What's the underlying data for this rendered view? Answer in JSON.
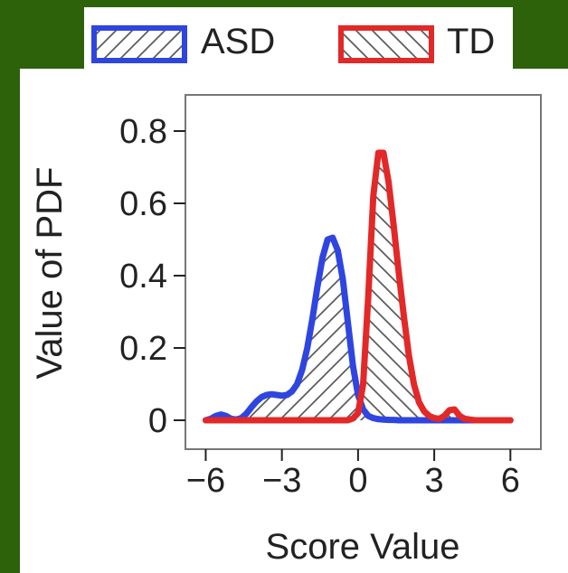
{
  "chart_data": {
    "type": "area",
    "title": "",
    "xlabel": "Score Value",
    "ylabel": "Value of PDF",
    "xlim": [
      -6.8,
      7.2
    ],
    "ylim": [
      -0.08,
      0.9
    ],
    "xticks": [
      -6,
      -3,
      0,
      3,
      6
    ],
    "xtick_labels": [
      "−6",
      "−3",
      "0",
      "3",
      "6"
    ],
    "yticks": [
      0,
      0.2,
      0.4,
      0.6,
      0.8
    ],
    "ytick_labels": [
      "0",
      "0.2",
      "0.4",
      "0.6",
      "0.8"
    ],
    "grid": false,
    "legend": {
      "position": "top",
      "entries": [
        "ASD",
        "TD"
      ]
    },
    "series": [
      {
        "name": "ASD",
        "color": "#2f45e0",
        "hatch": "backslash",
        "x": [
          -6,
          -5.8,
          -5.6,
          -5.4,
          -5.2,
          -5.0,
          -4.8,
          -4.6,
          -4.4,
          -4.2,
          -4.0,
          -3.8,
          -3.6,
          -3.4,
          -3.2,
          -3.0,
          -2.8,
          -2.6,
          -2.4,
          -2.2,
          -2.0,
          -1.8,
          -1.6,
          -1.4,
          -1.2,
          -1.0,
          -0.8,
          -0.6,
          -0.4,
          -0.2,
          0,
          0.2,
          0.4,
          0.6,
          0.8,
          1.0,
          1.2,
          1.4,
          1.6,
          1.8,
          2.0,
          2.2,
          2.4,
          2.6,
          2.8,
          3.0,
          3.2,
          3.4,
          3.6,
          3.8,
          4.0,
          4.2,
          4.4,
          4.6,
          4.8,
          5.0,
          5.2,
          5.4,
          5.6,
          5.8,
          6.0
        ],
        "y": [
          0.0,
          0.004,
          0.012,
          0.016,
          0.012,
          0.004,
          0.002,
          0.006,
          0.018,
          0.036,
          0.052,
          0.064,
          0.07,
          0.072,
          0.07,
          0.068,
          0.07,
          0.08,
          0.1,
          0.14,
          0.2,
          0.28,
          0.37,
          0.45,
          0.5,
          0.505,
          0.47,
          0.39,
          0.27,
          0.15,
          0.07,
          0.03,
          0.012,
          0.006,
          0.003,
          0.002,
          0.001,
          0.001,
          0.0,
          0.0,
          0.0,
          0.0,
          0.0,
          0.0,
          0.0,
          0.0,
          0.0,
          0.0,
          0.0,
          0.0,
          0.0,
          0.0,
          0.0,
          0.0,
          0.0,
          0.0,
          0.0,
          0.0,
          0.0,
          0.0,
          0.0
        ]
      },
      {
        "name": "TD",
        "color": "#e32828",
        "hatch": "slash",
        "x": [
          -6,
          -5.8,
          -5.6,
          -5.4,
          -5.2,
          -5.0,
          -4.8,
          -4.6,
          -4.4,
          -4.2,
          -4.0,
          -3.8,
          -3.6,
          -3.4,
          -3.2,
          -3.0,
          -2.8,
          -2.6,
          -2.4,
          -2.2,
          -2.0,
          -1.8,
          -1.6,
          -1.4,
          -1.2,
          -1.0,
          -0.8,
          -0.6,
          -0.4,
          -0.2,
          0,
          0.2,
          0.4,
          0.6,
          0.8,
          1.0,
          1.2,
          1.4,
          1.6,
          1.8,
          2.0,
          2.2,
          2.4,
          2.6,
          2.8,
          3.0,
          3.2,
          3.4,
          3.6,
          3.8,
          4.0,
          4.2,
          4.4,
          4.6,
          4.8,
          5.0,
          5.2,
          5.4,
          5.6,
          5.8,
          6.0
        ],
        "y": [
          0.0,
          0.0,
          0.0,
          0.0,
          0.0,
          0.0,
          0.0,
          0.0,
          0.0,
          0.0,
          0.0,
          0.0,
          0.0,
          0.0,
          0.0,
          0.0,
          0.0,
          0.0,
          0.0,
          0.0,
          0.0,
          0.0,
          0.0,
          0.0,
          0.0,
          0.0,
          0.0,
          0.0,
          0.0,
          0.005,
          0.02,
          0.1,
          0.34,
          0.62,
          0.74,
          0.74,
          0.66,
          0.54,
          0.41,
          0.29,
          0.18,
          0.1,
          0.05,
          0.025,
          0.012,
          0.006,
          0.004,
          0.012,
          0.028,
          0.03,
          0.012,
          0.004,
          0.002,
          0.0,
          0.0,
          0.0,
          0.0,
          0.0,
          0.0,
          0.0,
          0.0
        ]
      }
    ]
  }
}
